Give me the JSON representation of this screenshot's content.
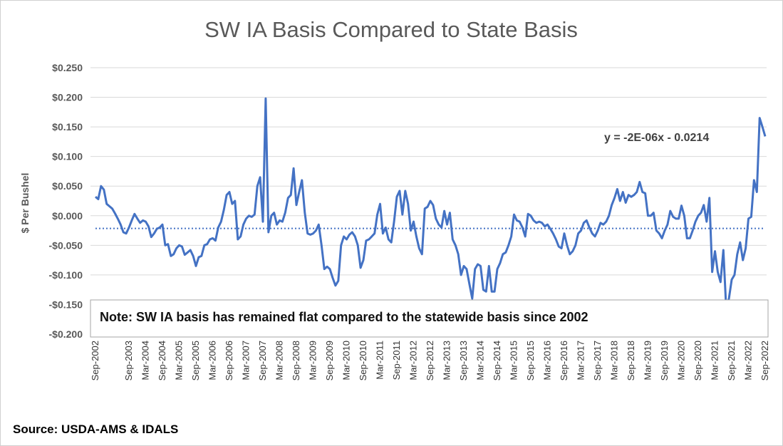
{
  "colors": {
    "series": "#4472C4",
    "trendline": "#4472C4",
    "grid": "#d9d9d9",
    "text": "#595959"
  },
  "note": "Note: SW IA basis has remained flat compared to the statewide basis since 2002",
  "source": "Source: USDA-AMS & IDALS",
  "chart_data": {
    "type": "line",
    "title": "SW IA Basis Compared to State Basis",
    "ylabel": "$ Per Bushel",
    "xlabel": "",
    "ylim": [
      -0.2,
      0.25
    ],
    "y_ticks": [
      0.25,
      0.2,
      0.15,
      0.1,
      0.05,
      0.0,
      -0.05,
      -0.1,
      -0.15,
      -0.2
    ],
    "y_tick_labels": [
      "$0.250",
      "$0.200",
      "$0.150",
      "$0.100",
      "$0.050",
      "$0.000",
      "-$0.050",
      "-$0.100",
      "-$0.150",
      "-$0.200"
    ],
    "grid": "horizontal",
    "x_tick_labels": [
      "Sep-2002",
      "Sep-2003",
      "Mar-2004",
      "Sep-2004",
      "Mar-2005",
      "Sep-2005",
      "Mar-2006",
      "Sep-2006",
      "Mar-2007",
      "Sep-2007",
      "Mar-2008",
      "Sep-2008",
      "Mar-2009",
      "Sep-2009",
      "Mar-2010",
      "Sep-2010",
      "Mar-2011",
      "Sep-2011",
      "Mar-2012",
      "Sep-2012",
      "Mar-2013",
      "Sep-2013",
      "Mar-2014",
      "Sep-2014",
      "Mar-2015",
      "Sep-2015",
      "Mar-2016",
      "Sep-2016",
      "Mar-2017",
      "Sep-2017",
      "Mar-2018",
      "Sep-2018",
      "Mar-2019",
      "Sep-2019",
      "Mar-2020",
      "Sep-2020",
      "Mar-2021",
      "Sep-2021",
      "Mar-2022",
      "Sep-2022"
    ],
    "trendline": {
      "equation": "y = -2E-06x - 0.0214",
      "value": -0.0214
    },
    "series": [
      {
        "start": "Sep-2002",
        "frequency": "monthly",
        "values": [
          0.032,
          0.028,
          0.05,
          0.044,
          0.02,
          0.016,
          0.012,
          0.004,
          -0.005,
          -0.015,
          -0.028,
          -0.03,
          -0.02,
          -0.008,
          0.003,
          -0.005,
          -0.012,
          -0.008,
          -0.01,
          -0.018,
          -0.036,
          -0.03,
          -0.022,
          -0.02,
          -0.015,
          -0.05,
          -0.048,
          -0.068,
          -0.065,
          -0.055,
          -0.05,
          -0.052,
          -0.066,
          -0.062,
          -0.058,
          -0.068,
          -0.085,
          -0.07,
          -0.068,
          -0.05,
          -0.048,
          -0.04,
          -0.038,
          -0.042,
          -0.02,
          -0.01,
          0.01,
          0.035,
          0.04,
          0.02,
          0.025,
          -0.04,
          -0.035,
          -0.015,
          -0.005,
          0.0,
          -0.002,
          0.002,
          0.05,
          0.065,
          -0.01,
          0.198,
          -0.028,
          0.0,
          0.005,
          -0.015,
          -0.008,
          -0.01,
          0.005,
          0.03,
          0.035,
          0.08,
          0.018,
          0.04,
          0.06,
          0.005,
          -0.03,
          -0.032,
          -0.03,
          -0.025,
          -0.015,
          -0.05,
          -0.09,
          -0.086,
          -0.09,
          -0.105,
          -0.118,
          -0.11,
          -0.05,
          -0.035,
          -0.04,
          -0.032,
          -0.028,
          -0.035,
          -0.05,
          -0.088,
          -0.075,
          -0.042,
          -0.04,
          -0.035,
          -0.03,
          0.002,
          0.02,
          -0.03,
          -0.02,
          -0.04,
          -0.045,
          -0.01,
          0.032,
          0.042,
          0.002,
          0.042,
          0.02,
          -0.025,
          -0.01,
          -0.035,
          -0.055,
          -0.065,
          0.012,
          0.015,
          0.025,
          0.018,
          -0.005,
          -0.015,
          -0.02,
          0.008,
          -0.015,
          0.005,
          -0.04,
          -0.05,
          -0.065,
          -0.1,
          -0.085,
          -0.09,
          -0.115,
          -0.14,
          -0.09,
          -0.082,
          -0.085,
          -0.125,
          -0.128,
          -0.085,
          -0.128,
          -0.128,
          -0.09,
          -0.08,
          -0.065,
          -0.062,
          -0.05,
          -0.035,
          0.002,
          -0.008,
          -0.01,
          -0.02,
          -0.035,
          0.003,
          0.0,
          -0.008,
          -0.012,
          -0.01,
          -0.012,
          -0.018,
          -0.015,
          -0.022,
          -0.03,
          -0.04,
          -0.052,
          -0.055,
          -0.03,
          -0.05,
          -0.065,
          -0.06,
          -0.05,
          -0.03,
          -0.025,
          -0.012,
          -0.008,
          -0.02,
          -0.03,
          -0.035,
          -0.025,
          -0.012,
          -0.015,
          -0.01,
          0.0,
          0.018,
          0.03,
          0.045,
          0.025,
          0.04,
          0.022,
          0.035,
          0.032,
          0.035,
          0.04,
          0.057,
          0.04,
          0.038,
          0.0,
          0.0,
          0.005,
          -0.025,
          -0.03,
          -0.038,
          -0.025,
          -0.015,
          0.008,
          -0.002,
          -0.005,
          -0.005,
          0.017,
          0.0,
          -0.038,
          -0.038,
          -0.025,
          -0.01,
          0.0,
          0.005,
          0.018,
          -0.01,
          0.03,
          -0.095,
          -0.06,
          -0.095,
          -0.112,
          -0.058,
          -0.155,
          -0.14,
          -0.108,
          -0.1,
          -0.065,
          -0.045,
          -0.075,
          -0.055,
          -0.005,
          -0.002,
          0.06,
          0.04,
          0.165,
          0.15,
          0.134
        ]
      }
    ]
  }
}
